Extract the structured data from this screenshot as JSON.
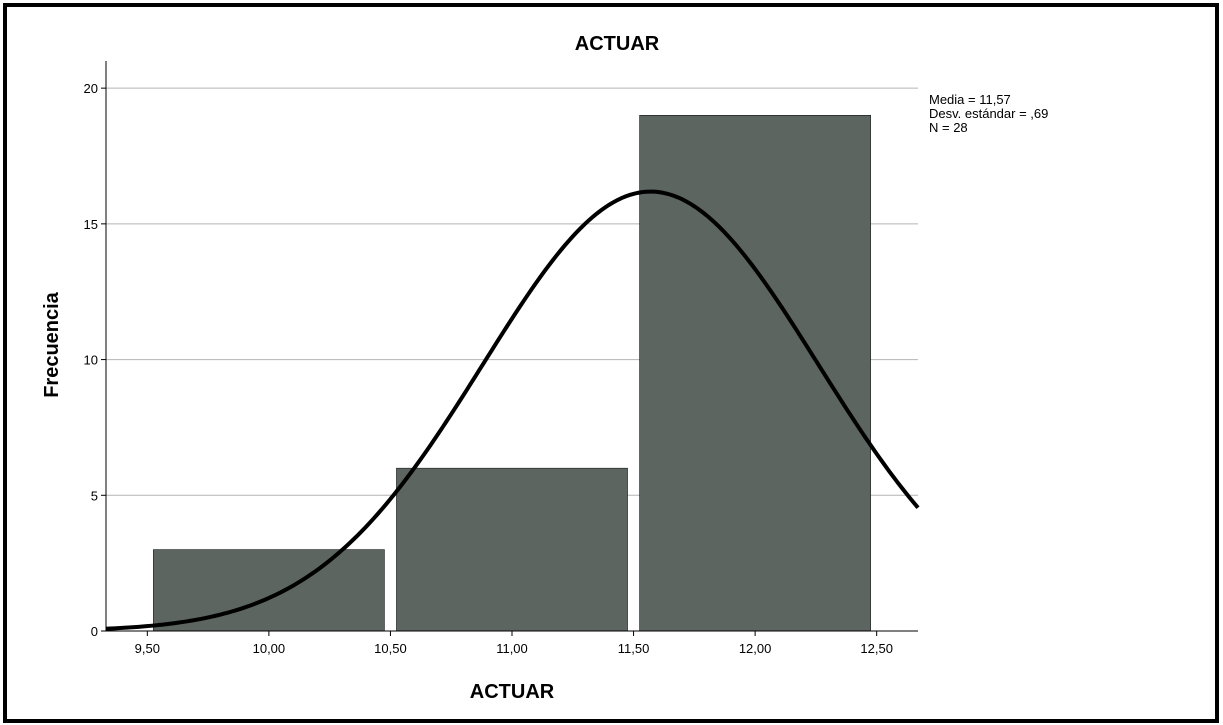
{
  "chart_data": {
    "type": "bar",
    "title": "ACTUAR",
    "xlabel": "ACTUAR",
    "ylabel": "Frecuencia",
    "bins": [
      {
        "x0": 9.5,
        "x1": 10.5,
        "count": 3
      },
      {
        "x0": 10.5,
        "x1": 11.5,
        "count": 6
      },
      {
        "x0": 11.5,
        "x1": 12.5,
        "count": 19
      }
    ],
    "xlim": [
      9.33,
      12.67
    ],
    "ylim": [
      0,
      21
    ],
    "x_ticks": [
      9.5,
      10.0,
      10.5,
      11.0,
      11.5,
      12.0,
      12.5
    ],
    "x_tick_labels": [
      "9,50",
      "10,00",
      "10,50",
      "11,00",
      "11,50",
      "12,00",
      "12,50"
    ],
    "y_ticks": [
      0,
      5,
      10,
      15,
      20
    ],
    "y_tick_labels": [
      "0",
      "5",
      "10",
      "15",
      "20"
    ],
    "grid": "horizontal",
    "normal_curve": {
      "mean": 11.57,
      "std": 0.69,
      "n": 28
    },
    "stats": [
      "Media = 11,57",
      "Desv. estándar = ,69",
      "N = 28"
    ],
    "colors": {
      "bar": "#5c6560",
      "curve": "#000000",
      "grid": "#b4b4b4"
    }
  }
}
